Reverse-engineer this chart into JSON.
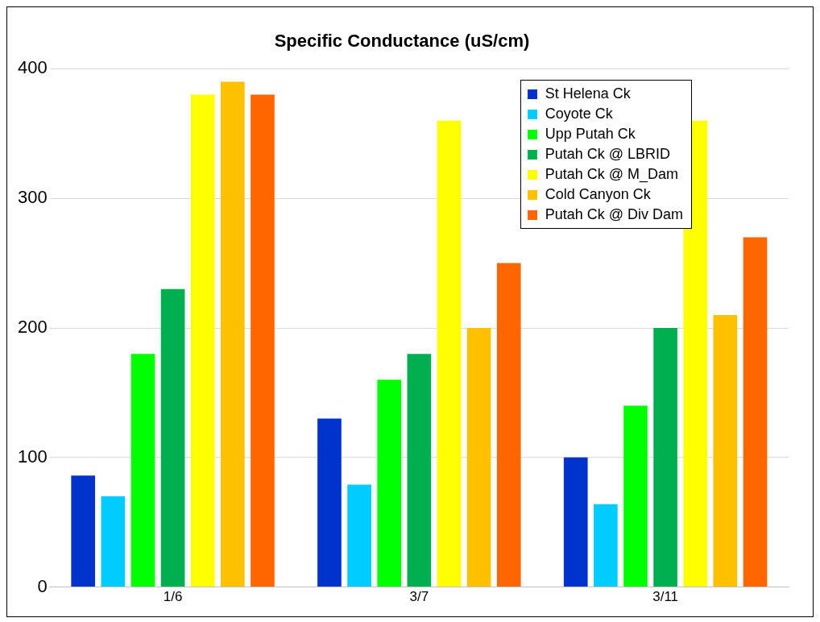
{
  "chart_data": {
    "type": "bar",
    "title": "Specific Conductance (uS/cm)",
    "categories": [
      "1/6",
      "3/7",
      "3/11"
    ],
    "series": [
      {
        "name": "St Helena Ck",
        "color": "#0033cc",
        "values": [
          86,
          130,
          100
        ]
      },
      {
        "name": "Coyote Ck",
        "color": "#00ccff",
        "values": [
          70,
          79,
          64
        ]
      },
      {
        "name": "Upp Putah Ck",
        "color": "#00ff00",
        "values": [
          180,
          160,
          140
        ]
      },
      {
        "name": "Putah Ck @ LBRID",
        "color": "#00b050",
        "values": [
          230,
          180,
          200
        ]
      },
      {
        "name": "Putah Ck @ M_Dam",
        "color": "#ffff00",
        "values": [
          380,
          360,
          360
        ]
      },
      {
        "name": "Cold Canyon Ck",
        "color": "#ffc000",
        "values": [
          390,
          200,
          210
        ]
      },
      {
        "name": "Putah Ck @ Div Dam",
        "color": "#ff6600",
        "values": [
          380,
          250,
          270
        ]
      }
    ],
    "ylim": [
      0,
      400
    ],
    "yticks": [
      0,
      100,
      200,
      300,
      400
    ],
    "grid": "y",
    "legend": "top right"
  }
}
